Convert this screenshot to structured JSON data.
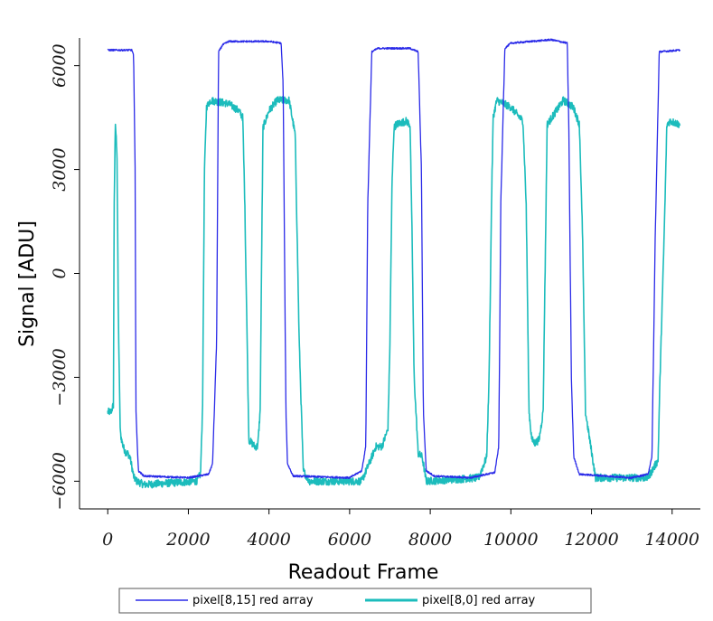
{
  "chart_data": {
    "type": "line",
    "xlabel": "Readout Frame",
    "ylabel": "Signal [ADU]",
    "xlim": [
      -700,
      14700
    ],
    "ylim": [
      -6800,
      6800
    ],
    "xticks": [
      0,
      2000,
      4000,
      6000,
      8000,
      10000,
      12000,
      14000
    ],
    "xtick_labels": [
      "0",
      "2000",
      "4000",
      "6000",
      "8000",
      "10000",
      "12000",
      "14000"
    ],
    "yticks": [
      -6000,
      -3000,
      0,
      3000,
      6000
    ],
    "ytick_labels": [
      "−6000",
      "−3000",
      "0",
      "3000",
      "6000"
    ],
    "grid": false,
    "legend_position": "bottom-center",
    "series": [
      {
        "name": "pixel[8,15] red array",
        "color": "#2a2ae8",
        "noise": 25,
        "x": [
          0,
          600,
          640,
          680,
          700,
          760,
          900,
          2000,
          2500,
          2600,
          2700,
          2750,
          2850,
          3000,
          4000,
          4300,
          4350,
          4420,
          4460,
          4600,
          6000,
          6300,
          6400,
          6450,
          6550,
          6700,
          7500,
          7700,
          7780,
          7830,
          7900,
          8100,
          9000,
          9600,
          9700,
          9750,
          9850,
          10000,
          11000,
          11400,
          11440,
          11500,
          11560,
          11700,
          13000,
          13400,
          13500,
          13580,
          13680,
          14200
        ],
        "y": [
          6450,
          6450,
          6300,
          3000,
          -4000,
          -5700,
          -5850,
          -5900,
          -5800,
          -5500,
          -2000,
          6400,
          6600,
          6700,
          6700,
          6650,
          5500,
          -4000,
          -5500,
          -5850,
          -5900,
          -5700,
          -5000,
          2000,
          6400,
          6500,
          6500,
          6400,
          3000,
          -4000,
          -5700,
          -5850,
          -5900,
          -5750,
          -5000,
          2000,
          6500,
          6650,
          6750,
          6650,
          4000,
          -3000,
          -5300,
          -5800,
          -5900,
          -5800,
          -5300,
          1000,
          6400,
          6450
        ]
      },
      {
        "name": "pixel[8,0] red array",
        "color": "#1cbcbc",
        "noise": 110,
        "x": [
          0,
          80,
          140,
          160,
          190,
          230,
          260,
          310,
          380,
          420,
          460,
          500,
          550,
          650,
          720,
          900,
          2200,
          2300,
          2350,
          2400,
          2450,
          2550,
          3000,
          3250,
          3350,
          3400,
          3500,
          3650,
          3720,
          3780,
          3850,
          4000,
          4200,
          4500,
          4650,
          4750,
          4850,
          5000,
          6300,
          6550,
          6650,
          6800,
          6950,
          7000,
          7050,
          7100,
          7150,
          7400,
          7500,
          7550,
          7600,
          7700,
          7800,
          7900,
          9200,
          9400,
          9460,
          9520,
          9560,
          9650,
          10000,
          10300,
          10380,
          10450,
          10520,
          10600,
          10700,
          10800,
          10900,
          11300,
          11550,
          11700,
          11780,
          11850,
          12100,
          13400,
          13650,
          13700,
          13800,
          13870,
          13950,
          14200
        ],
        "y": [
          -4000,
          -4000,
          -3800,
          2000,
          4300,
          3500,
          -1000,
          -4600,
          -5000,
          -5100,
          -5200,
          -5200,
          -5300,
          -5900,
          -6000,
          -6100,
          -6000,
          -5800,
          -4000,
          3000,
          4800,
          5000,
          4900,
          4700,
          4500,
          2000,
          -4800,
          -5000,
          -5000,
          -4000,
          4200,
          4700,
          5000,
          5000,
          4000,
          -2000,
          -5700,
          -6000,
          -6000,
          -5300,
          -5000,
          -5000,
          -4500,
          -2000,
          2500,
          4200,
          4300,
          4400,
          4300,
          1000,
          -3000,
          -5200,
          -5300,
          -6000,
          -5900,
          -5300,
          -3000,
          2000,
          4500,
          5000,
          4800,
          4400,
          2000,
          -4000,
          -4800,
          -4900,
          -4800,
          -4000,
          4300,
          5000,
          4800,
          4300,
          1000,
          -4000,
          -5900,
          -5900,
          -5400,
          -3000,
          1000,
          4300,
          4400,
          4300
        ]
      }
    ]
  }
}
